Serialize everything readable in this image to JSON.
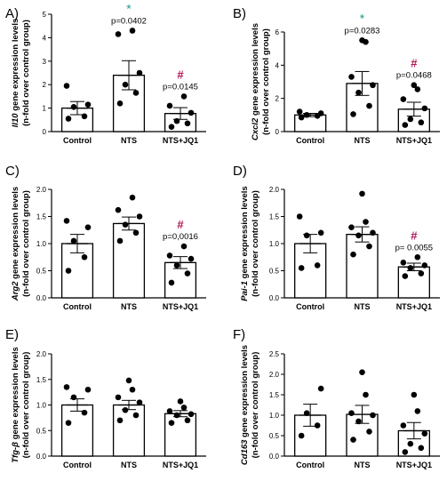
{
  "colors": {
    "star": "#1a9c8a",
    "hash": "#b01a5a",
    "bar_edge": "#000000",
    "point": "#000000"
  },
  "chart_data": [
    {
      "type": "bar",
      "panel": "A)",
      "ylabel_parts": [
        {
          "text": "Il10",
          "italic": true
        },
        {
          "text": " gene expression levels",
          "italic": false
        }
      ],
      "ylabel2": "(n-fold over control group)",
      "categories": [
        "Control",
        "NTS",
        "NTS+JQ1"
      ],
      "values": [
        1.0,
        2.4,
        0.77
      ],
      "errors": [
        0.28,
        0.62,
        0.25
      ],
      "points": [
        [
          0.55,
          0.65,
          1.05,
          1.15,
          1.95
        ],
        [
          1.2,
          1.65,
          2.0,
          2.5,
          4.15,
          4.3
        ],
        [
          0.2,
          0.35,
          0.45,
          0.8,
          1.1,
          1.5
        ]
      ],
      "ylim": [
        0,
        5
      ],
      "yticks": [
        0,
        1,
        2,
        3,
        4,
        5
      ],
      "tick_labels": [
        "0",
        "1",
        "2",
        "3",
        "4",
        "5"
      ],
      "annotations": {
        "1": {
          "marker": "*",
          "marker_color": "star",
          "pvalue": "p=0.0402"
        },
        "2": {
          "marker": "#",
          "marker_color": "hash",
          "pvalue": "p=0.0145"
        }
      }
    },
    {
      "type": "bar",
      "panel": "B)",
      "ylabel_parts": [
        {
          "text": "Cxcl2",
          "italic": true
        },
        {
          "text": " gene expression levels",
          "italic": false
        }
      ],
      "ylabel2": "(n-fold over control group)",
      "categories": [
        "Control",
        "NTS",
        "NTS+JQ1"
      ],
      "values": [
        1.0,
        2.9,
        1.35
      ],
      "errors": [
        0.1,
        0.72,
        0.42
      ],
      "points": [
        [
          0.85,
          0.95,
          1.0,
          1.1,
          1.2
        ],
        [
          1.05,
          1.55,
          2.35,
          2.8,
          3.3,
          5.4,
          5.5
        ],
        [
          0.4,
          0.55,
          0.75,
          1.4,
          1.95,
          2.55,
          2.8
        ]
      ],
      "ylim": [
        0,
        6
      ],
      "yticks": [
        0,
        2,
        4,
        6
      ],
      "tick_labels": [
        "0",
        "2",
        "4",
        "6"
      ],
      "annotations": {
        "1": {
          "marker": "*",
          "marker_color": "star",
          "pvalue": "p=0.0283"
        },
        "2": {
          "marker": "#",
          "marker_color": "hash",
          "pvalue": "p=0.0468"
        }
      }
    },
    {
      "type": "bar",
      "panel": "C)",
      "ylabel_parts": [
        {
          "text": "Arg2",
          "italic": true
        },
        {
          "text": " gene expression  levels",
          "italic": false
        }
      ],
      "ylabel2": "(n-fold over control group)",
      "categories": [
        "Control",
        "NTS",
        "NTS+JQ1"
      ],
      "values": [
        1.0,
        1.37,
        0.65
      ],
      "errors": [
        0.17,
        0.12,
        0.11
      ],
      "points": [
        [
          0.5,
          0.75,
          1.05,
          1.3,
          1.42
        ],
        [
          1.05,
          1.2,
          1.35,
          1.5,
          1.62,
          1.85
        ],
        [
          0.28,
          0.45,
          0.6,
          0.72,
          0.78,
          0.95
        ]
      ],
      "ylim": [
        0,
        2.0
      ],
      "yticks": [
        0,
        0.5,
        1.0,
        1.5,
        2.0
      ],
      "tick_labels": [
        "0.0",
        "0.5",
        "1.0",
        "1.5",
        "2.0"
      ],
      "annotations": {
        "2": {
          "marker": "#",
          "marker_color": "hash",
          "pvalue": "p=0,0016"
        }
      }
    },
    {
      "type": "bar",
      "panel": "D)",
      "ylabel_parts": [
        {
          "text": "Pai-1",
          "italic": true
        },
        {
          "text": " gene expression levels",
          "italic": false
        }
      ],
      "ylabel2": "(n-fold over control group)",
      "categories": [
        "Control",
        "NTS",
        "NTS+JQ1"
      ],
      "values": [
        1.0,
        1.17,
        0.57
      ],
      "errors": [
        0.17,
        0.14,
        0.07
      ],
      "points": [
        [
          0.55,
          0.6,
          1.15,
          1.2,
          1.5
        ],
        [
          0.8,
          0.95,
          1.15,
          1.2,
          1.3,
          1.4,
          1.92
        ],
        [
          0.4,
          0.45,
          0.55,
          0.6,
          0.65,
          0.75
        ]
      ],
      "ylim": [
        0,
        2.0
      ],
      "yticks": [
        0,
        0.5,
        1.0,
        1.5,
        2.0
      ],
      "tick_labels": [
        "0.0",
        "0.5",
        "1.0",
        "1.5",
        "2.0"
      ],
      "annotations": {
        "2": {
          "marker": "#",
          "marker_color": "hash",
          "pvalue": "p= 0.0055"
        }
      }
    },
    {
      "type": "bar",
      "panel": "E)",
      "ylabel_parts": [
        {
          "text": "Tfg-β",
          "italic": true
        },
        {
          "text": " gene expression levels",
          "italic": false
        }
      ],
      "ylabel2": "(n-fold over control group)",
      "categories": [
        "Control",
        "NTS",
        "NTS+JQ1"
      ],
      "values": [
        1.0,
        1.0,
        0.83
      ],
      "errors": [
        0.12,
        0.09,
        0.06
      ],
      "points": [
        [
          0.65,
          0.85,
          1.15,
          1.3,
          1.35
        ],
        [
          0.7,
          0.8,
          0.9,
          1.05,
          1.15,
          1.3,
          1.48
        ],
        [
          0.65,
          0.7,
          0.8,
          0.82,
          0.88,
          0.95,
          1.07
        ]
      ],
      "ylim": [
        0,
        2.0
      ],
      "yticks": [
        0,
        0.5,
        1.0,
        1.5,
        2.0
      ],
      "tick_labels": [
        "0.0",
        "0.5",
        "1.0",
        "1.5",
        "2.0"
      ],
      "annotations": {}
    },
    {
      "type": "bar",
      "panel": "F)",
      "ylabel_parts": [
        {
          "text": "Cd163",
          "italic": true
        },
        {
          "text": " gene expression levels",
          "italic": false
        }
      ],
      "ylabel2": "(n-fold over control group)",
      "categories": [
        "Control",
        "NTS",
        "NTS+JQ1"
      ],
      "values": [
        1.0,
        1.02,
        0.62
      ],
      "errors": [
        0.27,
        0.22,
        0.2
      ],
      "points": [
        [
          0.5,
          0.75,
          1.05,
          1.65
        ],
        [
          0.4,
          0.6,
          0.85,
          1.0,
          1.05,
          1.5,
          2.05
        ],
        [
          0.1,
          0.2,
          0.3,
          0.55,
          0.75,
          1.1,
          1.5
        ]
      ],
      "ylim": [
        0,
        2.5
      ],
      "yticks": [
        0,
        0.5,
        1.0,
        1.5,
        2.0,
        2.5
      ],
      "tick_labels": [
        "0.0",
        "0.5",
        "1.0",
        "1.5",
        "2.0",
        "2.5"
      ],
      "annotations": {}
    }
  ]
}
